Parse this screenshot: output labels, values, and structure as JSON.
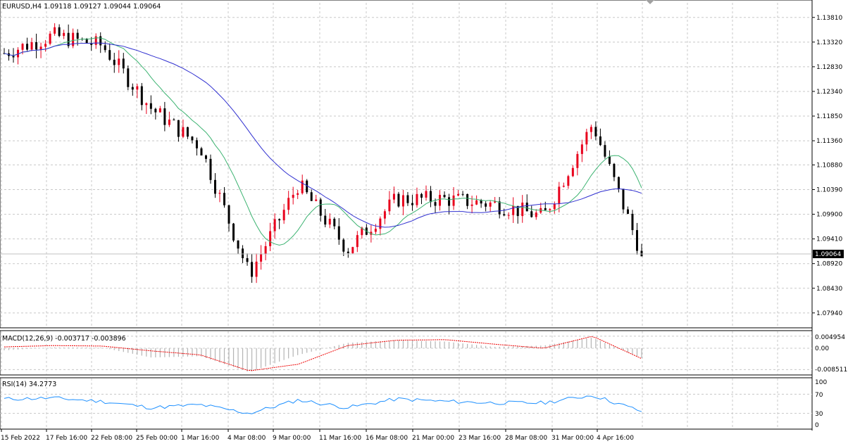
{
  "symbol_header": "EURUSD,H4  1.09118 1.09127 1.09044 1.09064",
  "current_price": "1.09064",
  "price_axis_labels": [
    "1.13810",
    "1.13320",
    "1.12830",
    "1.12340",
    "1.11850",
    "1.11360",
    "1.10880",
    "1.10390",
    "1.09900",
    "1.09410",
    "1.08920",
    "1.08430",
    "1.07940"
  ],
  "time_axis_labels": [
    "15 Feb 2022",
    "17 Feb 16:00",
    "22 Feb 08:00",
    "25 Feb 00:00",
    "1 Mar 16:00",
    "4 Mar 08:00",
    "9 Mar 00:00",
    "11 Mar 16:00",
    "16 Mar 08:00",
    "21 Mar 00:00",
    "23 Mar 16:00",
    "28 Mar 08:00",
    "31 Mar 00:00",
    "4 Apr 16:00"
  ],
  "macd": {
    "label": "MACD(12,26,9) -0.003717 -0.003896",
    "axis_labels": [
      "0.004954",
      "0.00",
      "-0.008511"
    ]
  },
  "rsi": {
    "label": "RSI(14) 34.2773",
    "axis_labels": [
      "100",
      "70",
      "30",
      "0"
    ]
  },
  "colors": {
    "bull": "#e8001c",
    "bear": "#000000",
    "ma_fast": "#3cb371",
    "ma_slow": "#3030d0",
    "macd_hist": "#b4b4b4",
    "macd_signal": "#ee0000",
    "rsi_line": "#1e90ff",
    "grid": "#c8c8c8"
  },
  "chart_data": [
    {
      "type": "candlestick",
      "title": "EURUSD,H4",
      "y_range": [
        1.077,
        1.141
      ],
      "anchors": [
        {
          "x": "15 Feb 2022",
          "close": 1.131
        },
        {
          "x": "17 Feb 16:00",
          "close": 1.1345
        },
        {
          "x": "22 Feb 08:00",
          "close": 1.1325
        },
        {
          "x": "25 Feb 00:00",
          "close": 1.12
        },
        {
          "x": "1 Mar 16:00",
          "close": 1.1125
        },
        {
          "x": "4 Mar 08:00",
          "close": 1.087
        },
        {
          "x": "9 Mar 00:00",
          "close": 1.105
        },
        {
          "x": "11 Mar 16:00",
          "close": 1.092
        },
        {
          "x": "16 Mar 08:00",
          "close": 1.102
        },
        {
          "x": "21 Mar 00:00",
          "close": 1.102
        },
        {
          "x": "23 Mar 16:00",
          "close": 1.101
        },
        {
          "x": "28 Mar 08:00",
          "close": 1.0985
        },
        {
          "x": "31 Mar 00:00",
          "close": 1.117
        },
        {
          "x": "4 Apr 16:00",
          "close": 1.091
        }
      ],
      "last_close": 1.09064
    },
    {
      "type": "line",
      "title": "MACD(12,26,9)",
      "y_range": [
        -0.0095,
        0.0058
      ],
      "signal_anchors": [
        0.0005,
        0.001,
        0.0008,
        -0.001,
        -0.0025,
        -0.0085,
        -0.006,
        0.001,
        0.003,
        0.0032,
        0.0015,
        0.0,
        0.0045,
        -0.0039
      ],
      "hist_anchors": [
        -0.0008,
        0.0003,
        0.0002,
        -0.0035,
        -0.003,
        -0.009,
        -0.0025,
        0.002,
        0.003,
        0.0025,
        0.0005,
        0.001,
        0.004,
        -0.0037
      ]
    },
    {
      "type": "line",
      "title": "RSI(14)",
      "y_range": [
        0,
        100
      ],
      "anchors": [
        60,
        62,
        55,
        42,
        48,
        30,
        58,
        42,
        60,
        55,
        52,
        52,
        68,
        34.2773
      ]
    }
  ]
}
